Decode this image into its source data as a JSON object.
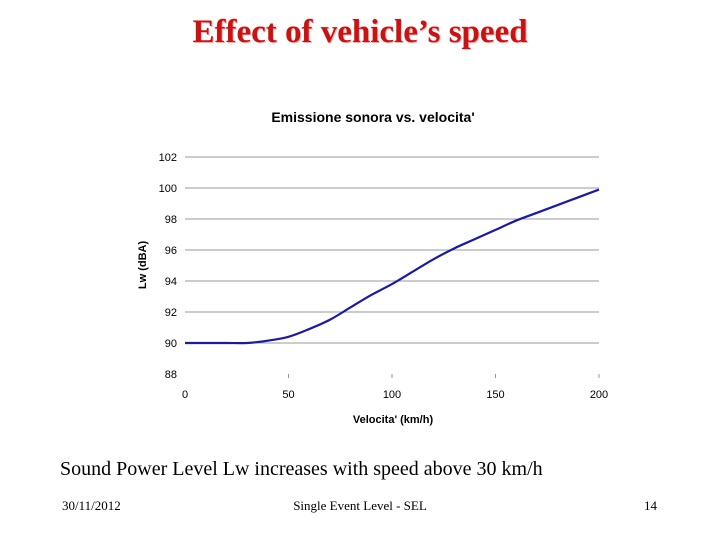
{
  "slide": {
    "title": "Effect of vehicle’s speed",
    "caption": "Sound Power Level Lw increases with speed above 30 km/h",
    "footer": {
      "date": "30/11/2012",
      "center": "Single Event Level - SEL",
      "page": "14"
    }
  },
  "colors": {
    "title": "#cc1111",
    "line": "#1a1aa6",
    "grid": "#999999"
  },
  "chart_data": {
    "type": "line",
    "title": "Emissione sonora vs. velocita'",
    "xlabel": "Velocita' (km/h)",
    "ylabel": "Lw (dBA)",
    "xlim": [
      0,
      200
    ],
    "ylim": [
      88,
      102
    ],
    "xticks": [
      0,
      50,
      100,
      150,
      200
    ],
    "yticks": [
      88,
      90,
      92,
      94,
      96,
      98,
      100,
      102
    ],
    "grid": "horizontal",
    "series": [
      {
        "name": "Lw",
        "x": [
          0,
          10,
          20,
          30,
          40,
          50,
          60,
          70,
          80,
          90,
          100,
          110,
          120,
          130,
          140,
          150,
          160,
          170,
          180,
          190,
          200
        ],
        "y": [
          90.0,
          90.0,
          90.0,
          90.0,
          90.15,
          90.4,
          90.9,
          91.5,
          92.3,
          93.1,
          93.8,
          94.6,
          95.4,
          96.1,
          96.7,
          97.3,
          97.9,
          98.4,
          98.9,
          99.4,
          99.9
        ]
      }
    ]
  }
}
